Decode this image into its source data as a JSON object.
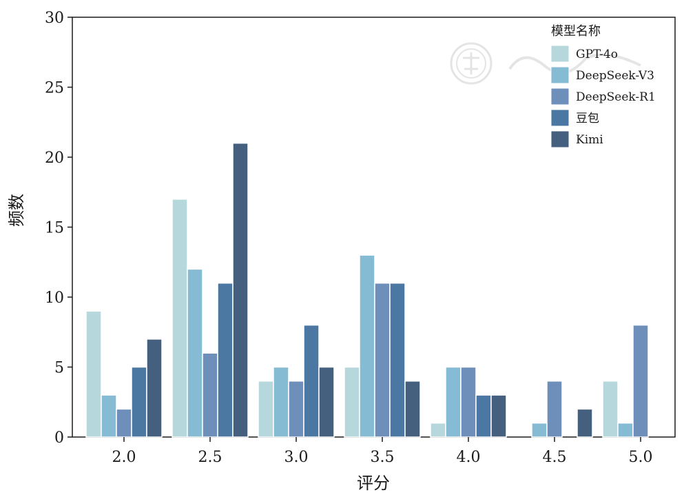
{
  "chart_data": {
    "type": "bar",
    "xlabel": "评分",
    "ylabel": "频数",
    "categories": [
      "2.0",
      "2.5",
      "3.0",
      "3.5",
      "4.0",
      "4.5",
      "5.0"
    ],
    "ylim": [
      0,
      30
    ],
    "yticks": [
      0,
      5,
      10,
      15,
      20,
      25,
      30
    ],
    "legend_title": "模型名称",
    "legend_position": "top-right",
    "series": [
      {
        "name": "GPT-4o",
        "color": "#b6d8dd",
        "values": [
          9,
          17,
          4,
          5,
          1,
          0,
          4
        ]
      },
      {
        "name": "DeepSeek-V3",
        "color": "#85bbd3",
        "values": [
          3,
          12,
          5,
          13,
          5,
          1,
          1
        ]
      },
      {
        "name": "DeepSeek-R1",
        "color": "#6e8fb9",
        "values": [
          2,
          6,
          4,
          11,
          5,
          4,
          8
        ]
      },
      {
        "name": "豆包",
        "color": "#4a78a2",
        "values": [
          5,
          11,
          8,
          11,
          3,
          0,
          0
        ]
      },
      {
        "name": "Kimi",
        "color": "#44607e",
        "values": [
          7,
          21,
          5,
          4,
          3,
          2,
          0
        ]
      }
    ]
  }
}
